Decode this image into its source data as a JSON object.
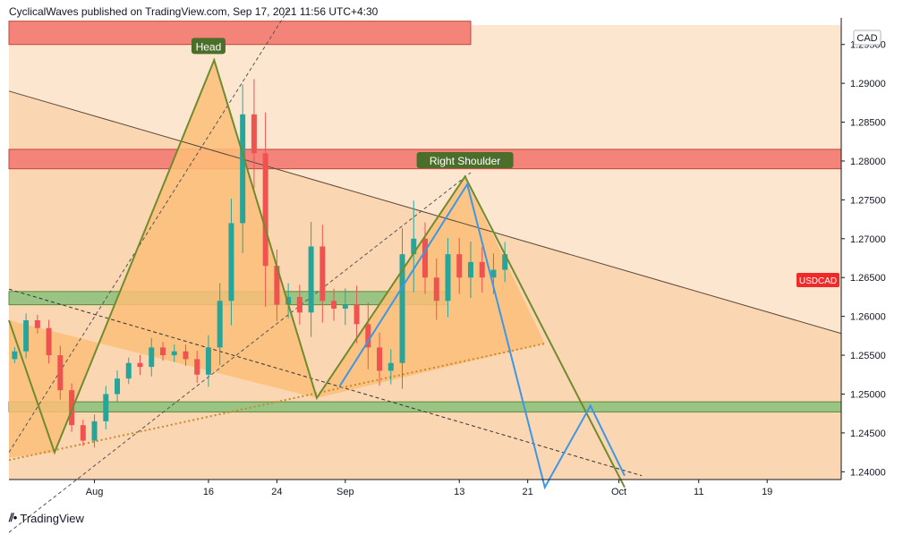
{
  "header": {
    "published_text": "CyclicalWaves published on TradingView.com, Sep 17, 2021 11:56 UTC+4:30"
  },
  "footer": {
    "logo_icon": "tradingview-logo-icon",
    "brand": "TradingView"
  },
  "chart_data": {
    "type": "candlestick",
    "symbol": "USDCAD",
    "currency": "CAD",
    "last_price_label": "USDCAD",
    "ylim": [
      1.239,
      1.2975
    ],
    "y_ticks": [
      1.24,
      1.245,
      1.25,
      1.255,
      1.26,
      1.265,
      1.27,
      1.275,
      1.28,
      1.285,
      1.29,
      1.295
    ],
    "y_tick_labels": [
      "1.24000",
      "1.24500",
      "1.25000",
      "1.25500",
      "1.26000",
      "1.26500",
      "1.27000",
      "1.27500",
      "1.28000",
      "1.28500",
      "1.29000",
      "1.29500"
    ],
    "x_ticks": [
      {
        "label": "Aug",
        "bar": 7
      },
      {
        "label": "16",
        "bar": 17
      },
      {
        "label": "24",
        "bar": 23
      },
      {
        "label": "Sep",
        "bar": 29
      },
      {
        "label": "13",
        "bar": 39
      },
      {
        "label": "21",
        "bar": 45
      },
      {
        "label": "Oct",
        "bar": 53
      },
      {
        "label": "11",
        "bar": 60
      },
      {
        "label": "19",
        "bar": 66
      }
    ],
    "xlim": [
      -0.5,
      72.5
    ],
    "bar_closes": [
      1.2555,
      1.2595,
      1.2585,
      1.255,
      1.2505,
      1.246,
      1.244,
      1.2465,
      1.25,
      1.252,
      1.254,
      1.2535,
      1.256,
      1.255,
      1.2555,
      1.2545,
      1.2525,
      1.256,
      1.262,
      1.272,
      1.286,
      1.281,
      1.2665,
      1.2615,
      1.2625,
      1.2605,
      1.269,
      1.262,
      1.261,
      1.2615,
      1.259,
      1.256,
      1.253,
      1.254,
      1.268,
      1.27,
      1.265,
      1.262,
      1.268,
      1.265,
      1.267,
      1.265,
      1.266,
      1.268
    ],
    "open_start": 1.2545,
    "bar_ranges": [
      0.0015,
      0.0025,
      0.002,
      0.003,
      0.0035,
      0.0025,
      0.002,
      0.0025,
      0.003,
      0.003,
      0.002,
      0.003,
      0.0035,
      0.002,
      0.0025,
      0.0025,
      0.003,
      0.0045,
      0.0065,
      0.009,
      0.011,
      0.013,
      0.015,
      0.006,
      0.005,
      0.0045,
      0.009,
      0.008,
      0.0045,
      0.006,
      0.007,
      0.008,
      0.0055,
      0.005,
      0.0095,
      0.014,
      0.006,
      0.007,
      0.006,
      0.006,
      0.0075,
      0.0055,
      0.006,
      0.0045
    ],
    "zones": [
      {
        "name": "resistance-zone-top",
        "y1": 1.295,
        "y2": 1.298,
        "x_end_bar": 40,
        "color": "#f4847a"
      },
      {
        "name": "resistance-zone-mid",
        "y1": 1.279,
        "y2": 1.2815,
        "x_end_bar": "end",
        "color": "#f4847a"
      },
      {
        "name": "support-zone-neckline",
        "y1": 1.2615,
        "y2": 1.2632,
        "x_end_bar": 38,
        "color": "#9ac483"
      },
      {
        "name": "support-zone-low",
        "y1": 1.2477,
        "y2": 1.249,
        "x_end_bar": "end",
        "color": "#9ac483"
      }
    ],
    "annotations": [
      {
        "name": "head-label",
        "text": "Head",
        "bar": 17,
        "price": 1.2947
      },
      {
        "name": "right-shoulder-label",
        "text": "Right Shoulder",
        "bar": 39.5,
        "price": 1.28
      }
    ],
    "pattern": {
      "left_shoulder_low": {
        "bar": 3.5,
        "price": 1.2425
      },
      "head": {
        "bar": 17.5,
        "price": 1.293
      },
      "neck_low": {
        "bar": 26.5,
        "price": 1.2495
      },
      "right_shoulder": {
        "bar": 39.5,
        "price": 1.278
      },
      "triangle_end": {
        "bar": 46.5,
        "price": 1.2565
      },
      "target": {
        "bar": 53.5,
        "price": 1.238
      }
    },
    "blue_projection": [
      {
        "bar": 28.5,
        "price": 1.251
      },
      {
        "bar": 39.7,
        "price": 1.277
      },
      {
        "bar": 46.5,
        "price": 1.238
      },
      {
        "bar": 50.5,
        "price": 1.2485
      },
      {
        "bar": 53.5,
        "price": 1.2395
      }
    ],
    "colors": {
      "background": "#fde6cf",
      "triangle_fill": "#fcbe78",
      "pattern_line": "#6f8b2f",
      "bull_candle": "#26a69a",
      "bear_candle": "#ef5350",
      "blue_line": "#3d97e6",
      "label_bg": "#4b6e2a",
      "price_tag": "#ef2a2a"
    }
  }
}
